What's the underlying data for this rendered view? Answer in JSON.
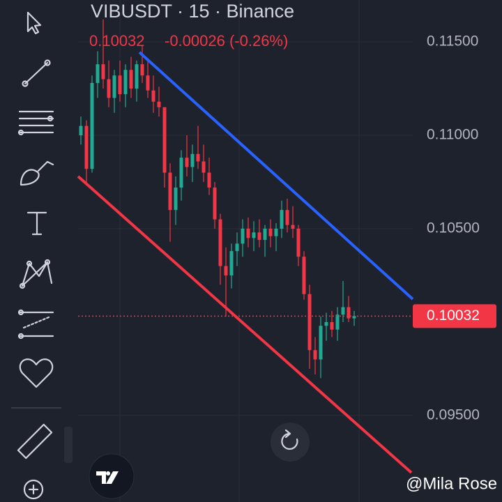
{
  "chart_data": {
    "type": "candlestick",
    "title": "VIBUSDT · 15 · Binance",
    "last_price_text": "0.10032",
    "change_text": "-0.00026 (-0.26%)",
    "last_price": 0.10032,
    "last_price_label": "0.10032",
    "watermark": "@Mila Rose",
    "up_color": "#22ab94",
    "down_color": "#f23645",
    "ylim": [
      0.09037,
      0.11724
    ],
    "yticks": [
      {
        "value": 0.095,
        "label": "0.09500"
      },
      {
        "value": 0.105,
        "label": "0.10500"
      },
      {
        "value": 0.11,
        "label": "0.11000"
      },
      {
        "value": 0.115,
        "label": "0.11500"
      }
    ],
    "grid": true,
    "open": [
      0.11,
      0.1105,
      0.1082,
      0.1128,
      0.1138,
      0.113,
      0.112,
      0.1132,
      0.1122,
      0.1135,
      0.1125,
      0.1138,
      0.1132,
      0.1124,
      0.1118,
      0.1115,
      0.108,
      0.106,
      0.1072,
      0.1088,
      0.1083,
      0.109,
      0.1086,
      0.108,
      0.1072,
      0.1055,
      0.103,
      0.1025,
      0.1038,
      0.1042,
      0.105,
      0.1045,
      0.1048,
      0.1044,
      0.105,
      0.1046,
      0.105,
      0.106,
      0.1052,
      0.105,
      0.1035,
      0.1015,
      0.0985,
      0.098,
      0.0998,
      0.1,
      0.0996,
      0.1004,
      0.1008,
      0.1002
    ],
    "high": [
      0.111,
      0.1108,
      0.1132,
      0.1145,
      0.1162,
      0.114,
      0.1135,
      0.114,
      0.1138,
      0.1142,
      0.114,
      0.1148,
      0.114,
      0.1132,
      0.1126,
      0.1115,
      0.1085,
      0.1078,
      0.1092,
      0.11,
      0.1095,
      0.1105,
      0.1095,
      0.1088,
      0.1075,
      0.1058,
      0.104,
      0.1042,
      0.1048,
      0.1055,
      0.1056,
      0.1054,
      0.1055,
      0.1052,
      0.1055,
      0.1053,
      0.1065,
      0.1066,
      0.1062,
      0.1052,
      0.1038,
      0.102,
      0.0992,
      0.1003,
      0.1005,
      0.1006,
      0.1008,
      0.1022,
      0.1014,
      0.1006
    ],
    "low": [
      0.1095,
      0.1075,
      0.108,
      0.112,
      0.1125,
      0.1115,
      0.1112,
      0.1118,
      0.1115,
      0.112,
      0.1118,
      0.1128,
      0.112,
      0.1112,
      0.111,
      0.1072,
      0.1043,
      0.1052,
      0.1065,
      0.1078,
      0.1075,
      0.1082,
      0.1075,
      0.1068,
      0.105,
      0.102,
      0.1003,
      0.1018,
      0.103,
      0.1035,
      0.104,
      0.1038,
      0.104,
      0.1035,
      0.104,
      0.1038,
      0.1045,
      0.1048,
      0.1045,
      0.103,
      0.1012,
      0.0975,
      0.0972,
      0.097,
      0.099,
      0.0992,
      0.099,
      0.1,
      0.1,
      0.0998
    ],
    "close": [
      0.1105,
      0.1082,
      0.1128,
      0.1138,
      0.113,
      0.112,
      0.1132,
      0.1122,
      0.1135,
      0.1125,
      0.1138,
      0.1132,
      0.1124,
      0.1118,
      0.1115,
      0.108,
      0.106,
      0.1072,
      0.1088,
      0.1083,
      0.109,
      0.1086,
      0.108,
      0.1072,
      0.1055,
      0.103,
      0.1025,
      0.1038,
      0.1042,
      0.105,
      0.1045,
      0.1048,
      0.1044,
      0.105,
      0.1046,
      0.105,
      0.106,
      0.1052,
      0.105,
      0.1035,
      0.1015,
      0.0985,
      0.098,
      0.0998,
      0.1,
      0.0996,
      0.1004,
      0.1008,
      0.1002,
      0.10032
    ],
    "trendlines": [
      {
        "color": "#2962ff",
        "start": 0.11444,
        "end": 0.10123
      },
      {
        "color": "#f23645",
        "start": 0.1078,
        "end": 0.09194
      }
    ]
  }
}
